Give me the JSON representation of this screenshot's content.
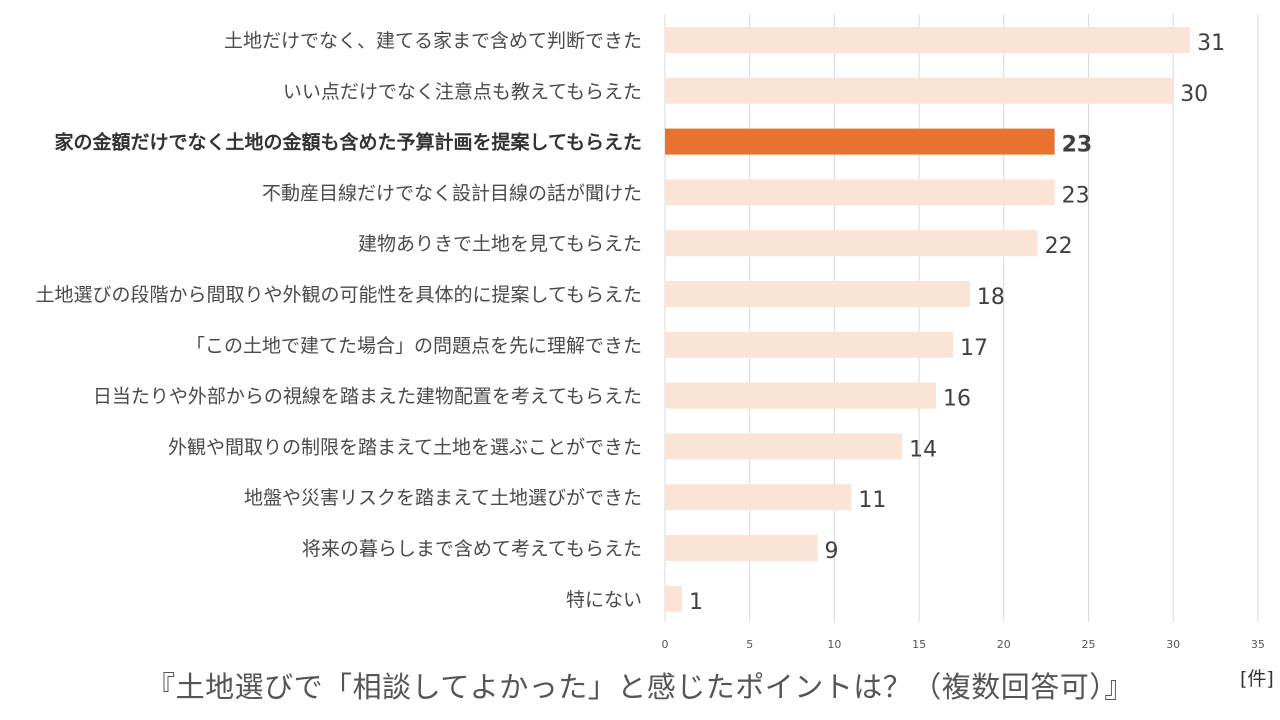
{
  "chart_data": {
    "type": "bar",
    "orientation": "horizontal",
    "title": "『土地選びで「相談してよかった」と感じたポイントは？（複数回答可）』",
    "unit": "[件]",
    "categories": [
      "土地だけでなく、建てる家まで含めて判断できた",
      "いい点だけでなく注意点も教えてもらえた",
      "家の金額だけでなく土地の金額も含めた予算計画を提案してもらえた",
      "不動産目線だけでなく設計目線の話が聞けた",
      "建物ありきで土地を見てもらえた",
      "土地選びの段階から間取りや外観の可能性を具体的に提案してもらえた",
      "「この土地で建てた場合」の問題点を先に理解できた",
      "日当たりや外部からの視線を踏まえた建物配置を考えてもらえた",
      "外観や間取りの制限を踏まえて土地を選ぶことができた",
      "地盤や災害リスクを踏まえて土地選びができた",
      "将来の暮らしまで含めて考えてもらえた",
      "特にない"
    ],
    "values": [
      31,
      30,
      23,
      23,
      22,
      18,
      17,
      16,
      14,
      11,
      9,
      1
    ],
    "highlight_index": 2,
    "xlim": [
      0,
      35
    ],
    "xticks": [
      0,
      5,
      10,
      15,
      20,
      25,
      30,
      35
    ],
    "grid": true,
    "colors": {
      "bar": "#fbe4d6",
      "highlight_bar": "#e87331",
      "grid": "#d9d9d9"
    }
  }
}
